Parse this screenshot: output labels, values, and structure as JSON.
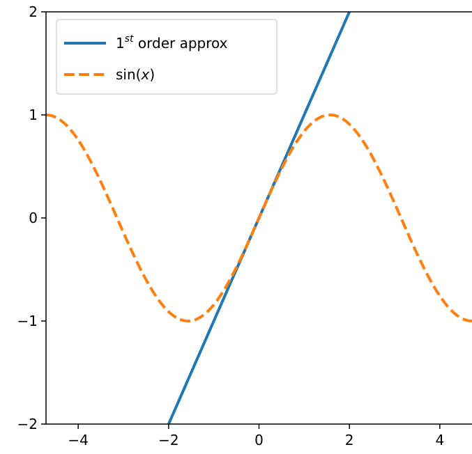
{
  "chart_data": {
    "type": "line",
    "title": "",
    "xlabel": "",
    "ylabel": "",
    "xlim": [
      -4.712,
      4.712
    ],
    "ylim": [
      -2,
      2
    ],
    "xticks": [
      -4,
      -2,
      0,
      2,
      4
    ],
    "yticks": [
      -2,
      -1,
      0,
      1,
      2
    ],
    "xtick_labels": [
      "−4",
      "−2",
      "0",
      "2",
      "4"
    ],
    "ytick_labels": [
      "−2",
      "−1",
      "0",
      "1",
      "2"
    ],
    "grid": false,
    "legend_position": "upper-left",
    "series": [
      {
        "name_base": "1",
        "name_sup": "st",
        "name_rest": " order approx",
        "expression": "y = x",
        "x": [
          -2,
          2
        ],
        "y": [
          -2,
          2
        ],
        "color": "#1f77b4",
        "style": "solid"
      },
      {
        "name_base": "sin(",
        "name_italic": "x",
        "name_rest": ")",
        "expression": "y = sin(x)",
        "x_range": [
          -4.712,
          4.712
        ],
        "color": "#ff7f0e",
        "style": "dashed"
      }
    ]
  }
}
